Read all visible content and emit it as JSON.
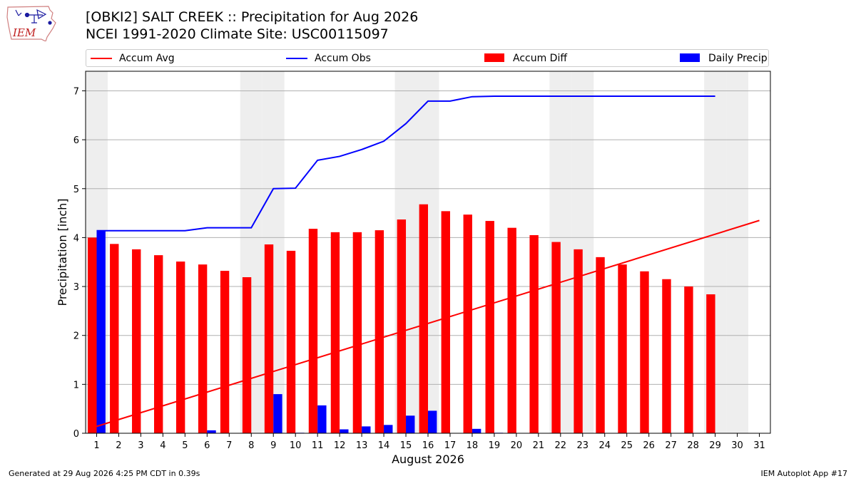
{
  "logo": {
    "text": "IEM"
  },
  "title": {
    "line1": "[OBKI2] SALT CREEK :: Precipitation for Aug 2026",
    "line2": "NCEI 1991-2020 Climate Site: USC00115097"
  },
  "legend": [
    {
      "label": "Accum Avg",
      "color": "#ff0000",
      "kind": "line"
    },
    {
      "label": "Accum Obs",
      "color": "#0000ff",
      "kind": "line"
    },
    {
      "label": "Accum Diff",
      "color": "#ff0000",
      "kind": "box"
    },
    {
      "label": "Daily Precip",
      "color": "#0000ff",
      "kind": "box"
    }
  ],
  "footer": {
    "left": "Generated at 29 Aug 2026 4:25 PM CDT in 0.39s",
    "right": "IEM Autoplot App #17"
  },
  "chart_data": {
    "type": "bar",
    "xlabel": "August 2026",
    "ylabel": "Precipitation [inch]",
    "xlim": [
      0.5,
      31.5
    ],
    "ylim": [
      0,
      7.4
    ],
    "yticks": [
      0,
      1,
      2,
      3,
      4,
      5,
      6,
      7
    ],
    "grid": true,
    "legend_position": "top",
    "weekend_days": [
      1,
      8,
      9,
      15,
      16,
      22,
      23,
      29,
      30
    ],
    "weekend_color": "#eeeeee",
    "days": [
      1,
      2,
      3,
      4,
      5,
      6,
      7,
      8,
      9,
      10,
      11,
      12,
      13,
      14,
      15,
      16,
      17,
      18,
      19,
      20,
      21,
      22,
      23,
      24,
      25,
      26,
      27,
      28,
      29,
      30,
      31
    ],
    "series": [
      {
        "name": "Accum Avg",
        "kind": "line",
        "color": "#ff0000",
        "x": [
          1,
          31
        ],
        "values": [
          0.14,
          4.35
        ]
      },
      {
        "name": "Accum Obs",
        "kind": "line",
        "color": "#0000ff",
        "x": [
          1,
          2,
          3,
          4,
          5,
          6,
          7,
          8,
          9,
          10,
          11,
          12,
          13,
          14,
          15,
          16,
          17,
          18,
          19,
          20,
          21,
          22,
          23,
          24,
          25,
          26,
          27,
          28,
          29
        ],
        "values": [
          4.14,
          4.14,
          4.14,
          4.14,
          4.14,
          4.2,
          4.2,
          4.2,
          5.0,
          5.01,
          5.58,
          5.66,
          5.8,
          5.97,
          6.33,
          6.79,
          6.79,
          6.88,
          6.89,
          6.89,
          6.89,
          6.89,
          6.89,
          6.89,
          6.89,
          6.89,
          6.89,
          6.89,
          6.89
        ]
      },
      {
        "name": "Accum Diff",
        "kind": "bar",
        "color": "#ff0000",
        "x": [
          1,
          2,
          3,
          4,
          5,
          6,
          7,
          8,
          9,
          10,
          11,
          12,
          13,
          14,
          15,
          16,
          17,
          18,
          19,
          20,
          21,
          22,
          23,
          24,
          25,
          26,
          27,
          28,
          29
        ],
        "values": [
          4.0,
          3.87,
          3.76,
          3.64,
          3.51,
          3.45,
          3.32,
          3.19,
          3.86,
          3.73,
          4.18,
          4.11,
          4.11,
          4.15,
          4.37,
          4.68,
          4.54,
          4.47,
          4.34,
          4.2,
          4.05,
          3.91,
          3.76,
          3.6,
          3.45,
          3.31,
          3.15,
          3.0,
          2.84
        ]
      },
      {
        "name": "Daily Precip",
        "kind": "bar",
        "color": "#0000ff",
        "x": [
          1,
          2,
          3,
          4,
          5,
          6,
          7,
          8,
          9,
          10,
          11,
          12,
          13,
          14,
          15,
          16,
          17,
          18,
          19,
          20,
          21,
          22,
          23,
          24,
          25,
          26,
          27,
          28,
          29
        ],
        "values": [
          4.14,
          0,
          0,
          0,
          0,
          0.06,
          0,
          0,
          0.8,
          0.01,
          0.57,
          0.08,
          0.14,
          0.17,
          0.36,
          0.46,
          0,
          0.09,
          0.01,
          0,
          0,
          0,
          0,
          0,
          0,
          0,
          0,
          0,
          0
        ]
      }
    ]
  }
}
